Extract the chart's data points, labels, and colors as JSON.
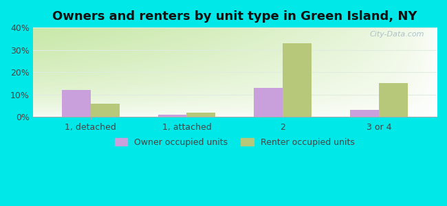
{
  "title": "Owners and renters by unit type in Green Island, NY",
  "categories": [
    "1, detached",
    "1, attached",
    "2",
    "3 or 4"
  ],
  "owner_values": [
    12,
    1,
    13,
    3
  ],
  "renter_values": [
    6,
    2,
    33,
    15
  ],
  "owner_color": "#c9a0dc",
  "renter_color": "#b8c87a",
  "ylim": [
    0,
    40
  ],
  "yticks": [
    0,
    10,
    20,
    30,
    40
  ],
  "ytick_labels": [
    "0%",
    "10%",
    "20%",
    "30%",
    "40%"
  ],
  "outer_bg": "#00e8e8",
  "bar_width": 0.3,
  "title_fontsize": 13,
  "legend_fontsize": 9,
  "watermark": "City-Data.com",
  "bg_colors": [
    "#d0e8b0",
    "#e8f5e0",
    "#f0faf5",
    "#ffffff"
  ],
  "grid_color": "#e0ece0"
}
